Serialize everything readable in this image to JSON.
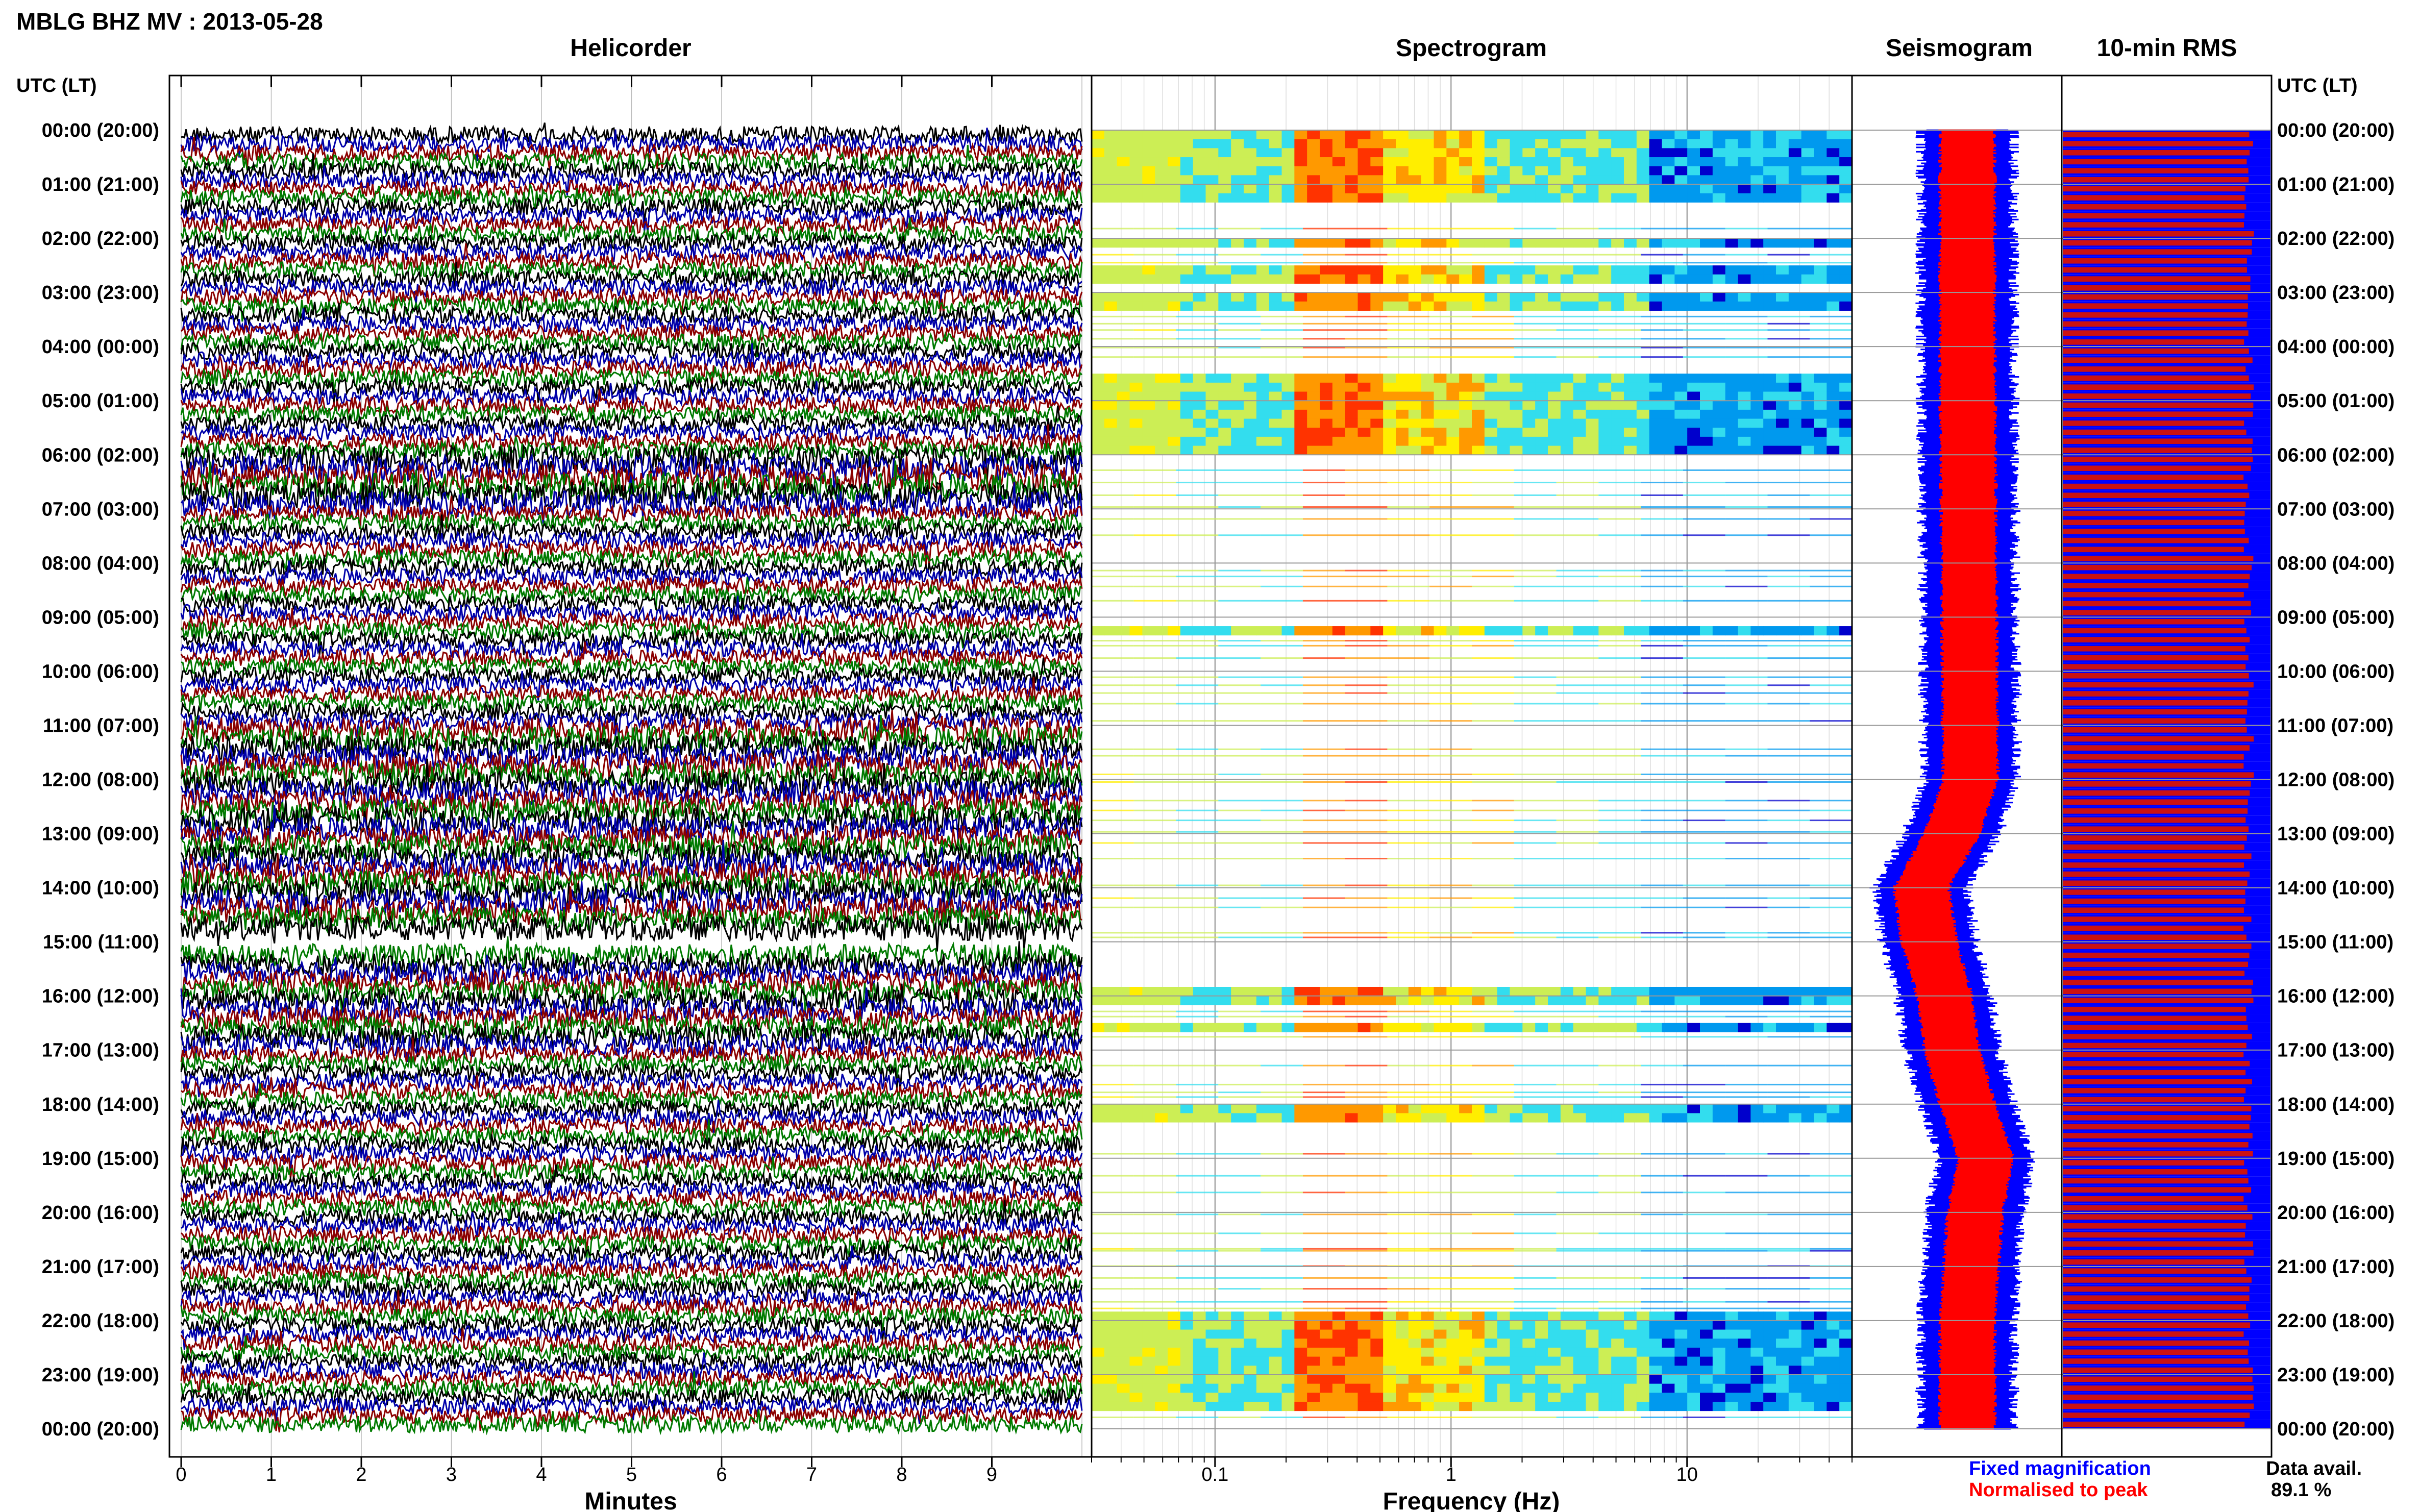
{
  "header": {
    "title": "MBLG BHZ MV : 2013-05-28"
  },
  "time_axis": {
    "label_left": "UTC (LT)",
    "label_right": "UTC (LT)",
    "hours": [
      "00:00 (20:00)",
      "01:00 (21:00)",
      "02:00 (22:00)",
      "03:00 (23:00)",
      "04:00 (00:00)",
      "05:00 (01:00)",
      "06:00 (02:00)",
      "07:00 (03:00)",
      "08:00 (04:00)",
      "09:00 (05:00)",
      "10:00 (06:00)",
      "11:00 (07:00)",
      "12:00 (08:00)",
      "13:00 (09:00)",
      "14:00 (10:00)",
      "15:00 (11:00)",
      "16:00 (12:00)",
      "17:00 (13:00)",
      "18:00 (14:00)",
      "19:00 (15:00)",
      "20:00 (16:00)",
      "21:00 (17:00)",
      "22:00 (18:00)",
      "23:00 (19:00)",
      "00:00 (20:00)"
    ]
  },
  "legend": {
    "fixed": "Fixed magnification",
    "normalised": "Normalised to peak",
    "fixed_color": "#0000ff",
    "normalised_color": "#ff0000"
  },
  "data_availability": {
    "label": "Data avail.",
    "value": "89.1 %"
  },
  "chart_data": [
    {
      "type": "line",
      "title": "Helicorder",
      "xlabel": "Minutes",
      "ylabel": "UTC (LT)",
      "xlim": [
        0,
        10
      ],
      "x_ticks": [
        "0",
        "1",
        "2",
        "3",
        "4",
        "5",
        "6",
        "7",
        "8",
        "9"
      ],
      "rows_per_hour": 6,
      "trace_colors": [
        "#000000",
        "#0000aa",
        "#8b0000",
        "#007a00"
      ],
      "gap_rows": [
        89,
        90
      ]
    },
    {
      "type": "heatmap",
      "title": "Spectrogram",
      "xlabel": "Frequency (Hz)",
      "x_scale": "log",
      "xlim": [
        0.03,
        50
      ],
      "x_ticks": [
        "0.1",
        "1",
        "10"
      ],
      "colormap": [
        "#0000cc",
        "#0099ee",
        "#33ddee",
        "#ccee55",
        "#ffee00",
        "#ff9900",
        "#ff3300"
      ],
      "active_hours": [
        [
          0,
          1.3
        ],
        [
          1.95,
          2.15
        ],
        [
          2.45,
          2.75
        ],
        [
          3.0,
          3.3
        ],
        [
          4.5,
          5.95
        ],
        [
          9.1,
          9.3
        ],
        [
          15.75,
          16.1
        ],
        [
          16.4,
          16.6
        ],
        [
          17.9,
          18.2
        ],
        [
          21.75,
          23.6
        ]
      ]
    },
    {
      "type": "line",
      "title": "Seismogram",
      "series": [
        {
          "name": "Fixed magnification",
          "color": "#0000ff"
        },
        {
          "name": "Normalised to peak",
          "color": "#ff0000"
        }
      ],
      "baseline_profile": [
        [
          0,
          0
        ],
        [
          4,
          0
        ],
        [
          12,
          0.02
        ],
        [
          13,
          -0.1
        ],
        [
          14,
          -0.3
        ],
        [
          15,
          -0.25
        ],
        [
          16,
          -0.15
        ],
        [
          17,
          -0.1
        ],
        [
          18,
          0
        ],
        [
          19,
          0.12
        ],
        [
          20,
          0.05
        ],
        [
          22,
          0
        ],
        [
          24,
          0
        ]
      ]
    },
    {
      "type": "bar",
      "title": "10-min RMS",
      "orientation": "horizontal",
      "series": [
        {
          "name": "Fixed magnification",
          "color": "#0000ff",
          "level": 1.0
        },
        {
          "name": "Normalised to peak",
          "color": "#cc1111",
          "level": 0.9
        }
      ]
    }
  ]
}
